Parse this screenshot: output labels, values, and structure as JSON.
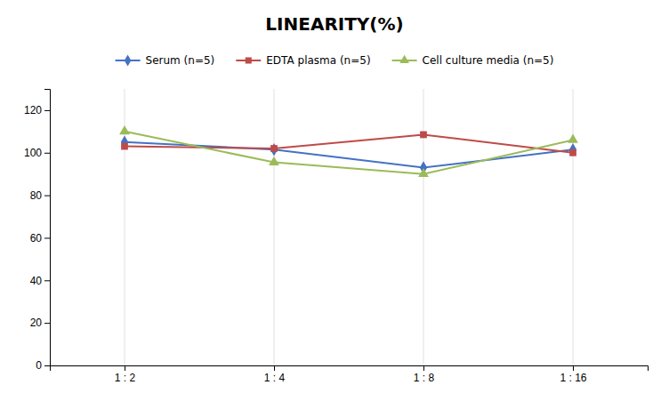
{
  "chart_data": {
    "type": "line",
    "title": "LINEARITY(%)",
    "categories": [
      "1 : 2",
      "1 : 4",
      "1 : 8",
      "1 : 16"
    ],
    "series": [
      {
        "name": "Serum (n=5)",
        "color": "#4472C4",
        "marker": "diamond",
        "values": [
          105.0,
          101.5,
          93.0,
          101.5
        ]
      },
      {
        "name": "EDTA plasma (n=5)",
        "color": "#BE4B48",
        "marker": "square",
        "values": [
          103.0,
          102.0,
          108.5,
          100.0
        ]
      },
      {
        "name": "Cell culture media (n=5)",
        "color": "#9BBB59",
        "marker": "triangle",
        "values": [
          110.0,
          95.5,
          90.0,
          106.0
        ]
      }
    ],
    "ylim": [
      0,
      130
    ],
    "yticks": [
      0,
      20,
      40,
      60,
      80,
      100,
      120
    ],
    "grid": true,
    "legend": "top"
  }
}
